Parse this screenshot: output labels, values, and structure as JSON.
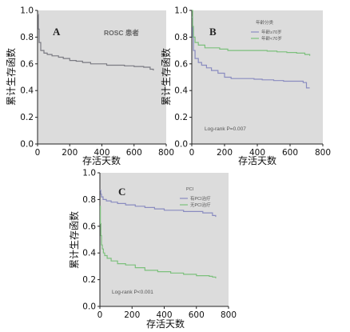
{
  "colors": {
    "plot_bg": "#dcdcdc",
    "axis": "#222222",
    "survival_gray": "#7a7a82",
    "group_blue": "#8a8cc0",
    "group_green": "#7cc07c"
  },
  "chart_data": [
    {
      "type": "line",
      "panel": "A",
      "annotation": "ROSC 患者",
      "ylabel": "累计生存函数",
      "xlabel": "存活天数",
      "xlim": [
        0,
        800
      ],
      "ylim": [
        0,
        1.0
      ],
      "xticks": [
        0,
        200,
        400,
        600,
        800
      ],
      "yticks": [
        "0.0",
        "0.2",
        "0.4",
        "0.6",
        "0.8",
        "1.0"
      ],
      "grid": false,
      "series": [
        {
          "color": "#7a7a82",
          "x": [
            0,
            5,
            10,
            20,
            40,
            60,
            90,
            130,
            160,
            200,
            240,
            280,
            330,
            380,
            430,
            480,
            540,
            600,
            660,
            700,
            720
          ],
          "y": [
            0.97,
            0.86,
            0.76,
            0.7,
            0.68,
            0.67,
            0.66,
            0.65,
            0.64,
            0.625,
            0.62,
            0.61,
            0.6,
            0.6,
            0.59,
            0.59,
            0.585,
            0.58,
            0.575,
            0.56,
            0.55
          ]
        }
      ]
    },
    {
      "type": "line",
      "panel": "B",
      "legend_title": "年龄分类",
      "legend": [
        "年龄≥70岁",
        "年龄<70岁"
      ],
      "annotation": "Log-rank P=0.007",
      "ylabel": "累计生存函数",
      "xlabel": "存活天数",
      "xlim": [
        0,
        800
      ],
      "ylim": [
        0,
        1.0
      ],
      "xticks": [
        0,
        200,
        400,
        600,
        800
      ],
      "yticks": [
        "0.0",
        "0.2",
        "0.4",
        "0.6",
        "0.8",
        "1.0"
      ],
      "grid": false,
      "series": [
        {
          "color": "#8a8cc0",
          "x": [
            0,
            5,
            10,
            20,
            40,
            60,
            90,
            120,
            160,
            200,
            240,
            280,
            330,
            380,
            430,
            500,
            560,
            620,
            680,
            700,
            720
          ],
          "y": [
            0.95,
            0.8,
            0.7,
            0.64,
            0.61,
            0.59,
            0.57,
            0.55,
            0.53,
            0.5,
            0.49,
            0.49,
            0.49,
            0.485,
            0.48,
            0.475,
            0.47,
            0.47,
            0.46,
            0.42,
            0.42
          ]
        },
        {
          "color": "#7cc07c",
          "x": [
            0,
            5,
            10,
            20,
            40,
            80,
            120,
            170,
            220,
            280,
            340,
            400,
            460,
            520,
            580,
            640,
            690,
            720
          ],
          "y": [
            1.0,
            0.88,
            0.8,
            0.76,
            0.74,
            0.72,
            0.72,
            0.71,
            0.7,
            0.7,
            0.7,
            0.7,
            0.695,
            0.69,
            0.685,
            0.68,
            0.67,
            0.66
          ]
        }
      ]
    },
    {
      "type": "line",
      "panel": "C",
      "legend_title": "PCI",
      "legend": [
        "有PCI治疗",
        "无PCI治疗"
      ],
      "annotation": "Log-rank P<0.001",
      "ylabel": "累计生存函数",
      "xlabel": "存活天数",
      "xlim": [
        0,
        800
      ],
      "ylim": [
        0,
        1.0
      ],
      "xticks": [
        0,
        200,
        400,
        600,
        800
      ],
      "yticks": [
        "0.0",
        "0.2",
        "0.4",
        "0.6",
        "0.8",
        "1.0"
      ],
      "grid": false,
      "series": [
        {
          "color": "#8a8cc0",
          "x": [
            0,
            5,
            10,
            20,
            40,
            70,
            110,
            160,
            220,
            280,
            340,
            400,
            460,
            520,
            580,
            640,
            700,
            720
          ],
          "y": [
            0.87,
            0.84,
            0.82,
            0.8,
            0.79,
            0.78,
            0.77,
            0.76,
            0.75,
            0.74,
            0.73,
            0.72,
            0.72,
            0.71,
            0.71,
            0.7,
            0.68,
            0.67
          ]
        },
        {
          "color": "#7cc07c",
          "x": [
            0,
            3,
            6,
            10,
            15,
            22,
            30,
            45,
            70,
            110,
            160,
            220,
            280,
            360,
            440,
            520,
            600,
            680,
            700,
            720
          ],
          "y": [
            0.75,
            0.62,
            0.53,
            0.46,
            0.43,
            0.4,
            0.38,
            0.36,
            0.34,
            0.32,
            0.31,
            0.29,
            0.27,
            0.26,
            0.25,
            0.24,
            0.23,
            0.225,
            0.22,
            0.21
          ]
        }
      ]
    }
  ]
}
